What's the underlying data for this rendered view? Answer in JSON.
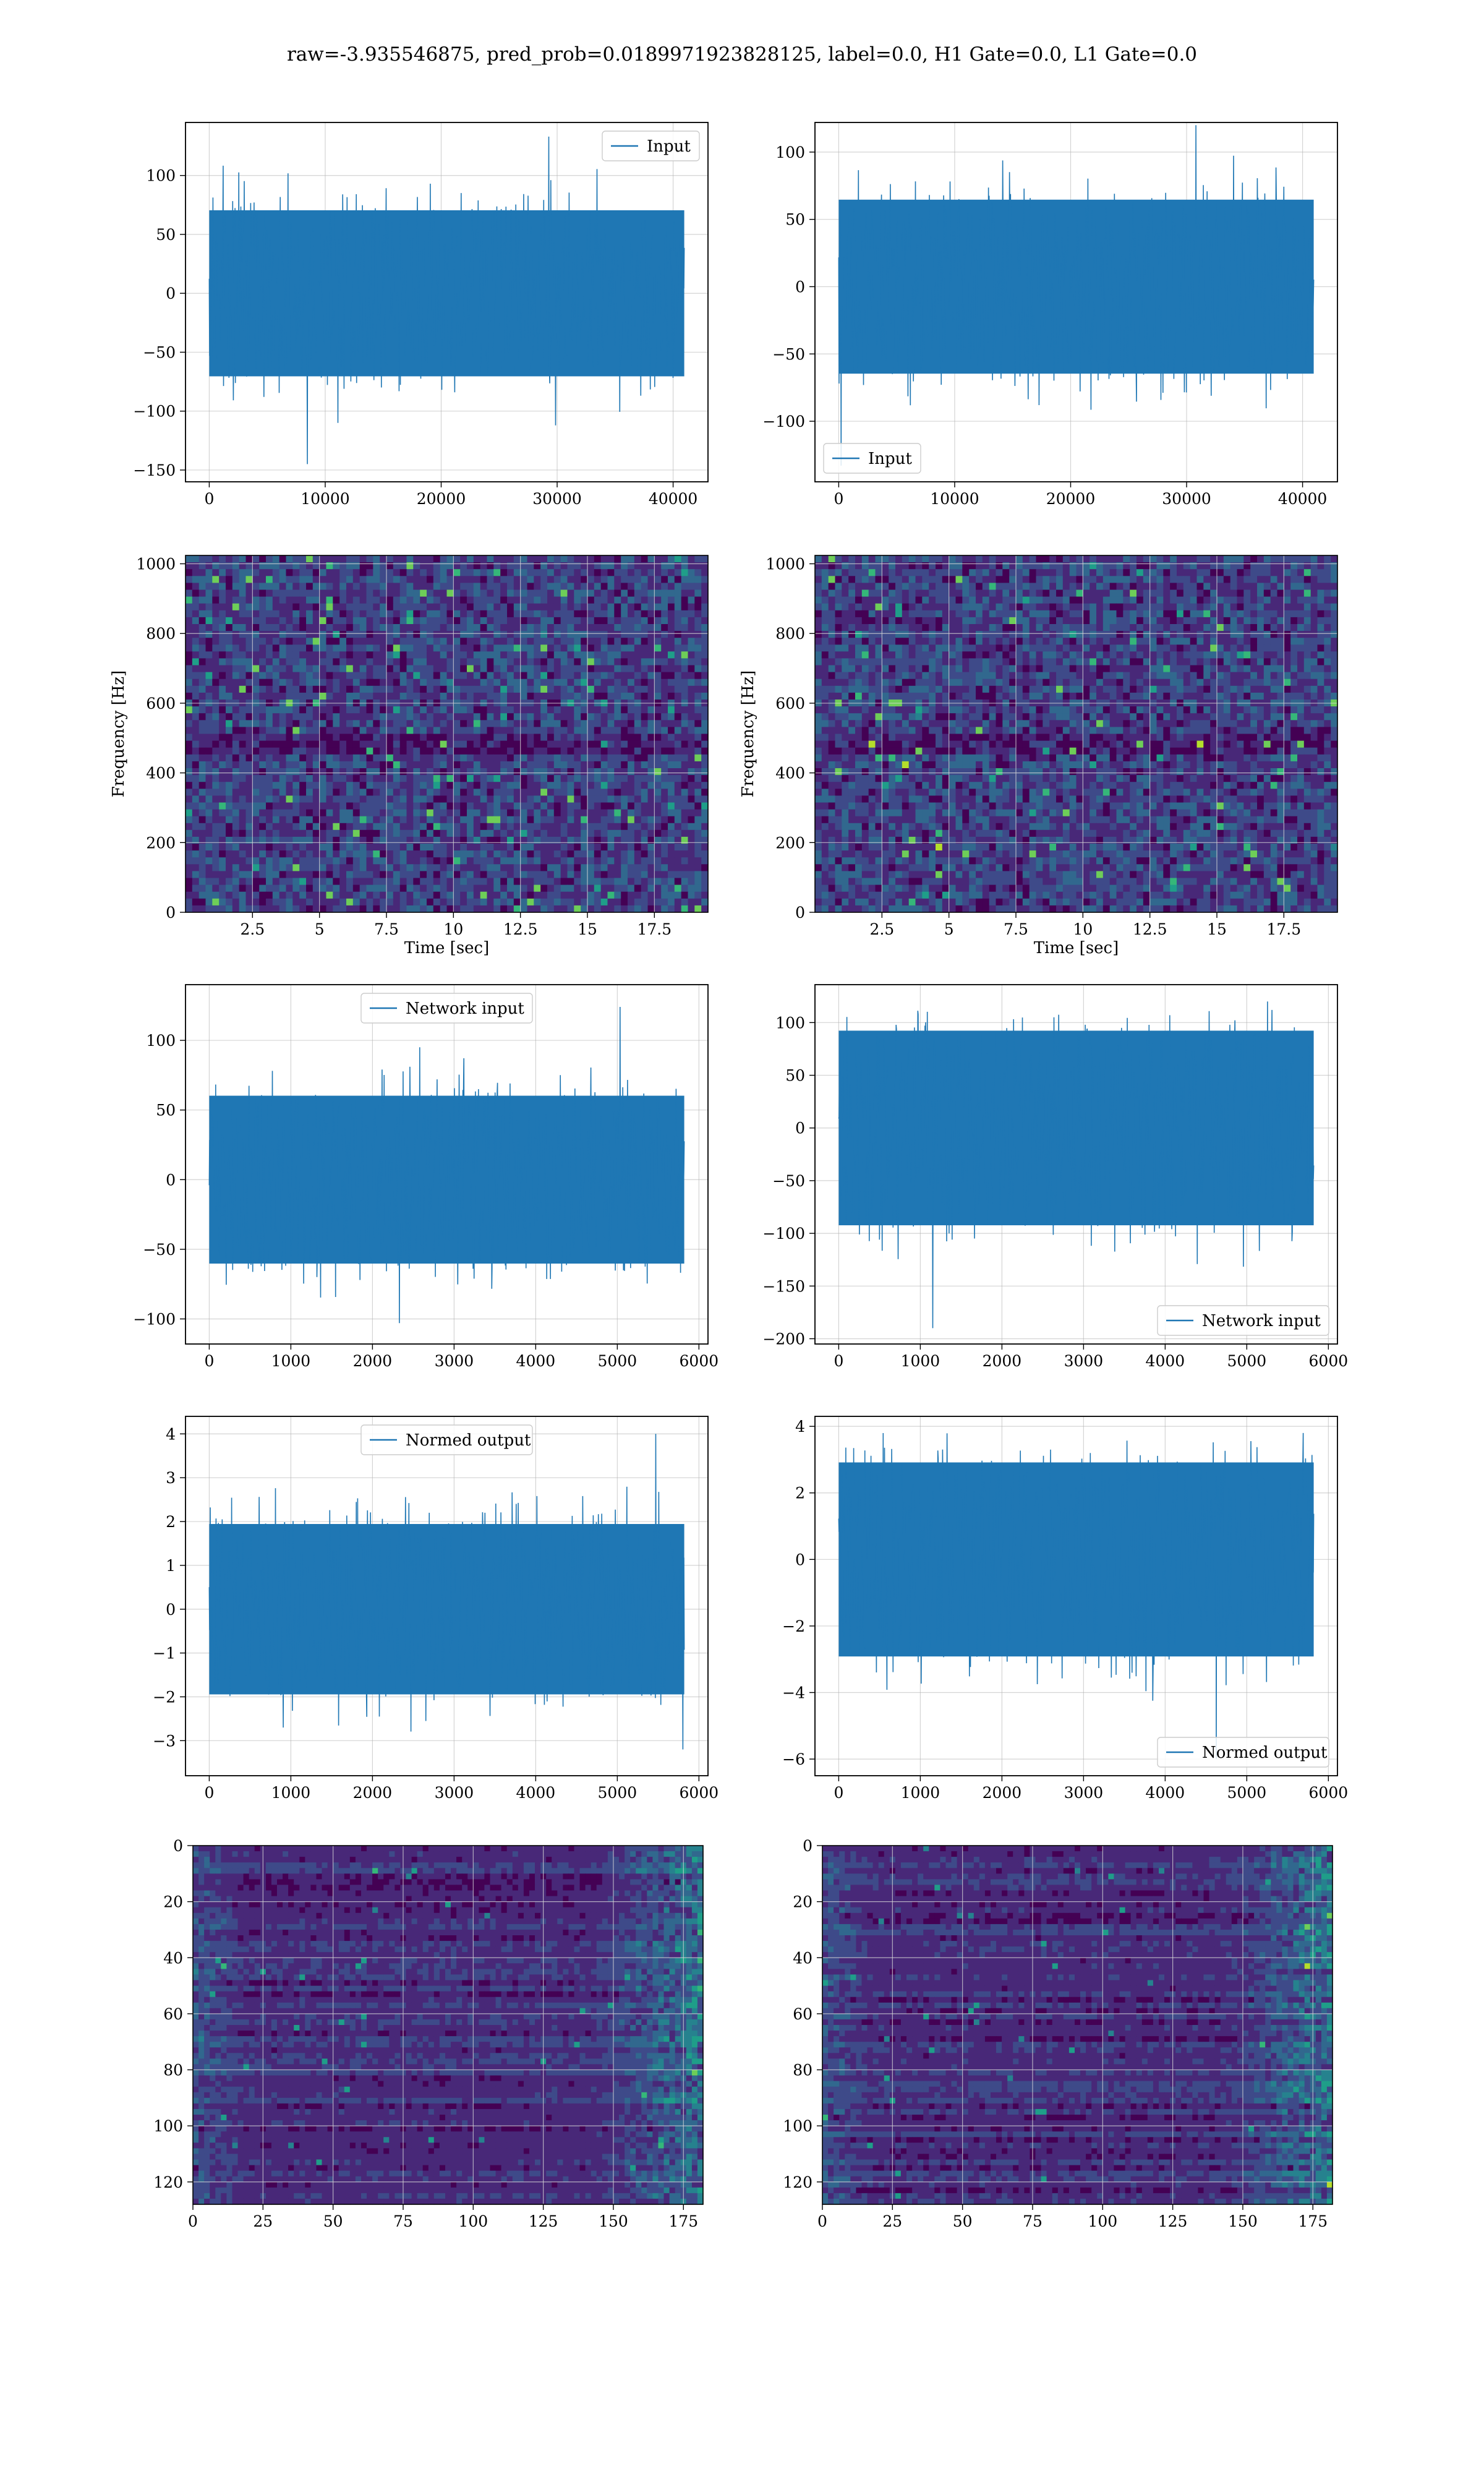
{
  "figure": {
    "suptitle": "raw=-3.935546875, pred_prob=0.0189971923828125, label=0.0, H1 Gate=0.0, L1 Gate=0.0"
  },
  "colors": {
    "line": "#1f77b4",
    "grid": "#b0b0b0",
    "viridis": [
      "#440154",
      "#482878",
      "#3e4a89",
      "#31688e",
      "#26828e",
      "#1f9e89",
      "#35b779",
      "#6ece58",
      "#b5de2b",
      "#fde725"
    ]
  },
  "chart_data": [
    {
      "id": "input_h1",
      "type": "line",
      "series": [
        {
          "name": "Input",
          "x_range": [
            0,
            40960
          ],
          "amplitude_min": -145,
          "amplitude_max": 133
        }
      ],
      "legend": "Input",
      "legend_loc": "upper right",
      "xlim": [
        -2048,
        43008
      ],
      "ylim": [
        -160,
        145
      ],
      "xticks": [
        0,
        10000,
        20000,
        30000,
        40000
      ],
      "yticks": [
        -150,
        -100,
        -50,
        0,
        50,
        100
      ],
      "xlabel": "",
      "ylabel": ""
    },
    {
      "id": "input_l1",
      "type": "line",
      "series": [
        {
          "name": "Input",
          "x_range": [
            0,
            40960
          ],
          "amplitude_min": -133,
          "amplitude_max": 120
        }
      ],
      "legend": "Input",
      "legend_loc": "lower left",
      "xlim": [
        -2048,
        43008
      ],
      "ylim": [
        -145,
        122
      ],
      "xticks": [
        0,
        10000,
        20000,
        30000,
        40000
      ],
      "yticks": [
        -100,
        -50,
        0,
        50,
        100
      ],
      "xlabel": "",
      "ylabel": ""
    },
    {
      "id": "spec_h1",
      "type": "heatmap",
      "xlim": [
        0,
        19.5
      ],
      "ylim": [
        0,
        1024
      ],
      "xticks": [
        2.5,
        5.0,
        7.5,
        10.0,
        12.5,
        15.0,
        17.5
      ],
      "yticks": [
        0,
        200,
        400,
        600,
        800,
        1000
      ],
      "xlabel": "Time [sec]",
      "ylabel": "Frequency [Hz]",
      "colormap": "viridis"
    },
    {
      "id": "spec_l1",
      "type": "heatmap",
      "xlim": [
        0,
        19.5
      ],
      "ylim": [
        0,
        1024
      ],
      "xticks": [
        2.5,
        5.0,
        7.5,
        10.0,
        12.5,
        15.0,
        17.5
      ],
      "yticks": [
        0,
        200,
        400,
        600,
        800,
        1000
      ],
      "xlabel": "Time [sec]",
      "ylabel": "Frequency [Hz]",
      "colormap": "viridis"
    },
    {
      "id": "net_h1",
      "type": "line",
      "series": [
        {
          "name": "Network input",
          "x_range": [
            0,
            5820
          ],
          "amplitude_min": -103,
          "amplitude_max": 124
        }
      ],
      "legend": "Network input",
      "legend_loc": "upper center",
      "xlim": [
        -291,
        6111
      ],
      "ylim": [
        -118,
        140
      ],
      "xticks": [
        0,
        1000,
        2000,
        3000,
        4000,
        5000,
        6000
      ],
      "yticks": [
        -100,
        -50,
        0,
        50,
        100
      ],
      "xlabel": "",
      "ylabel": ""
    },
    {
      "id": "net_l1",
      "type": "line",
      "series": [
        {
          "name": "Network input",
          "x_range": [
            0,
            5820
          ],
          "amplitude_min": -190,
          "amplitude_max": 120
        }
      ],
      "legend": "Network input",
      "legend_loc": "lower right",
      "xlim": [
        -291,
        6111
      ],
      "ylim": [
        -205,
        136
      ],
      "xticks": [
        0,
        1000,
        2000,
        3000,
        4000,
        5000,
        6000
      ],
      "yticks": [
        -200,
        -150,
        -100,
        -50,
        0,
        50,
        100
      ],
      "xlabel": "",
      "ylabel": ""
    },
    {
      "id": "norm_h1",
      "type": "line",
      "series": [
        {
          "name": "Normed output",
          "x_range": [
            0,
            5820
          ],
          "amplitude_min": -3.2,
          "amplitude_max": 4.0
        }
      ],
      "legend": "Normed output",
      "legend_loc": "upper center",
      "xlim": [
        -291,
        6111
      ],
      "ylim": [
        -3.8,
        4.4
      ],
      "xticks": [
        0,
        1000,
        2000,
        3000,
        4000,
        5000,
        6000
      ],
      "yticks": [
        -3,
        -2,
        -1,
        0,
        1,
        2,
        3,
        4
      ],
      "xlabel": "",
      "ylabel": ""
    },
    {
      "id": "norm_l1",
      "type": "line",
      "series": [
        {
          "name": "Normed output",
          "x_range": [
            0,
            5820
          ],
          "amplitude_min": -6.0,
          "amplitude_max": 3.8
        }
      ],
      "legend": "Normed output",
      "legend_loc": "lower right",
      "xlim": [
        -291,
        6111
      ],
      "ylim": [
        -6.5,
        4.3
      ],
      "xticks": [
        0,
        1000,
        2000,
        3000,
        4000,
        5000,
        6000
      ],
      "yticks": [
        -6,
        -4,
        -2,
        0,
        2,
        4
      ],
      "xlabel": "",
      "ylabel": ""
    },
    {
      "id": "feat_h1",
      "type": "heatmap",
      "xlim": [
        0,
        182
      ],
      "ylim": [
        128,
        0
      ],
      "xticks": [
        0,
        25,
        50,
        75,
        100,
        125,
        150,
        175
      ],
      "yticks": [
        0,
        20,
        40,
        60,
        80,
        100,
        120
      ],
      "xlabel": "",
      "ylabel": "",
      "colormap": "viridis"
    },
    {
      "id": "feat_l1",
      "type": "heatmap",
      "xlim": [
        0,
        182
      ],
      "ylim": [
        128,
        0
      ],
      "xticks": [
        0,
        25,
        50,
        75,
        100,
        125,
        150,
        175
      ],
      "yticks": [
        0,
        20,
        40,
        60,
        80,
        100,
        120
      ],
      "xlabel": "",
      "ylabel": "",
      "colormap": "viridis"
    }
  ]
}
